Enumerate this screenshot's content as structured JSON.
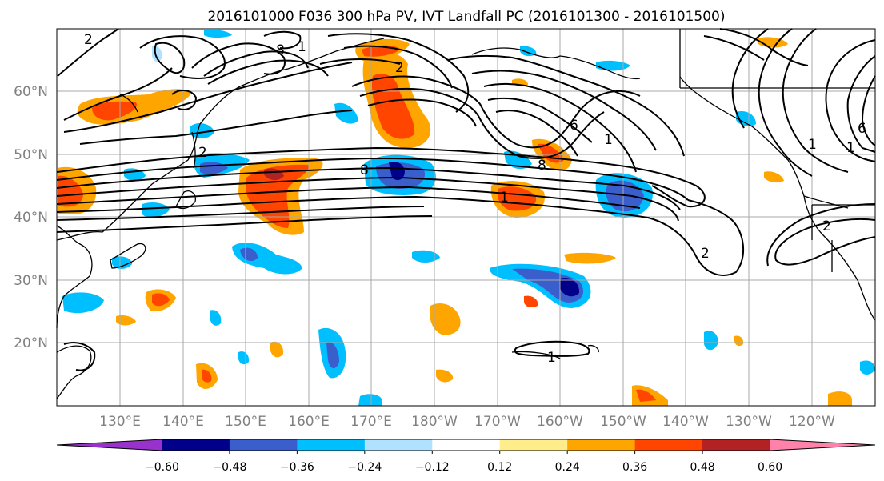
{
  "title": "2016101000 F036 300 hPa PV, IVT Landfall PC (2016101300 - 2016101500)",
  "map": {
    "lon_ticks": [
      "130°E",
      "140°E",
      "150°E",
      "160°E",
      "170°E",
      "180°W",
      "170°W",
      "160°W",
      "150°W",
      "140°W",
      "130°W",
      "120°W"
    ],
    "lat_ticks": [
      "60°N",
      "50°N",
      "40°N",
      "30°N",
      "20°N"
    ],
    "contour_labels": [
      "2",
      "8",
      "1",
      "2",
      "8",
      "1",
      "6",
      "8",
      "1",
      "2",
      "6",
      "1",
      "1",
      "2",
      "1",
      "2"
    ]
  },
  "colorbar": {
    "ticks": [
      "−0.60",
      "−0.48",
      "−0.36",
      "−0.24",
      "−0.12",
      "0.12",
      "0.24",
      "0.36",
      "0.48",
      "0.60"
    ],
    "colors": [
      "#9932cc",
      "#00008b",
      "#3a5fcd",
      "#00bfff",
      "#b0e2ff",
      "#ffffff",
      "#ffec8b",
      "#ffa500",
      "#ff4500",
      "#b22222",
      "#ff82ab"
    ]
  }
}
